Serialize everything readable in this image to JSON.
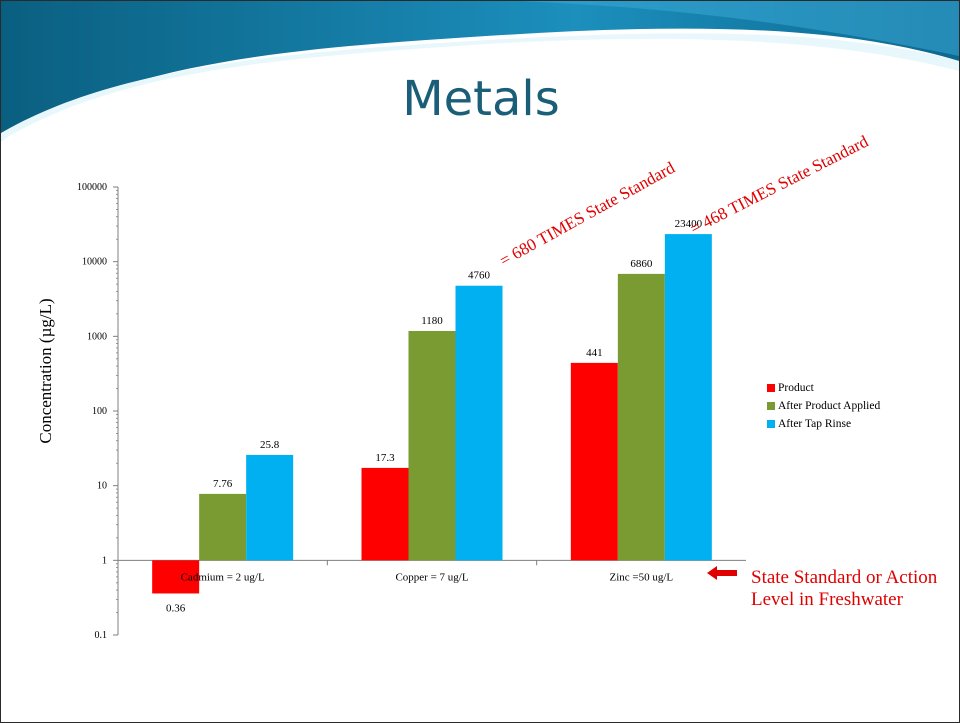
{
  "slide": {
    "title": "Metals",
    "annotations": [
      {
        "text": "= 680 TIMES State Standard",
        "color": "#e00000"
      },
      {
        "text": "= 468 TIMES State Standard",
        "color": "#e00000"
      }
    ],
    "standard_note": "State Standard or Action Level in Freshwater",
    "arrow_icon": "left-arrow-icon",
    "colors": {
      "title": "#1b5e78",
      "annotation": "#e00000",
      "swoosh_dark": "#0d6b8f",
      "swoosh_light": "#7fd3ee"
    }
  },
  "chart_data": {
    "type": "bar",
    "ylabel": "Concentration (µg/L)",
    "xlabel": "",
    "yscale": "log",
    "ylim": [
      0.1,
      100000
    ],
    "yticks": [
      "0.1",
      "1",
      "10",
      "100",
      "1000",
      "10000",
      "100000"
    ],
    "baseline": 1,
    "categories": [
      "Cadmium = 2 ug/L",
      "Copper = 7 ug/L",
      "Zinc =50 ug/L"
    ],
    "series": [
      {
        "name": "Product",
        "color": "#ff0000",
        "values": [
          0.36,
          17.3,
          441
        ],
        "labels": [
          "0.36",
          "17.3",
          "441"
        ]
      },
      {
        "name": "After Product Applied",
        "color": "#7a9a32",
        "values": [
          7.76,
          1180,
          6860
        ],
        "labels": [
          "7.76",
          "1180",
          "6860"
        ]
      },
      {
        "name": "After Tap Rinse",
        "color": "#00b0f0",
        "values": [
          25.8,
          4760,
          23400
        ],
        "labels": [
          "25.8",
          "4760",
          "23400"
        ]
      }
    ],
    "legend_position": "right",
    "grid": false
  }
}
